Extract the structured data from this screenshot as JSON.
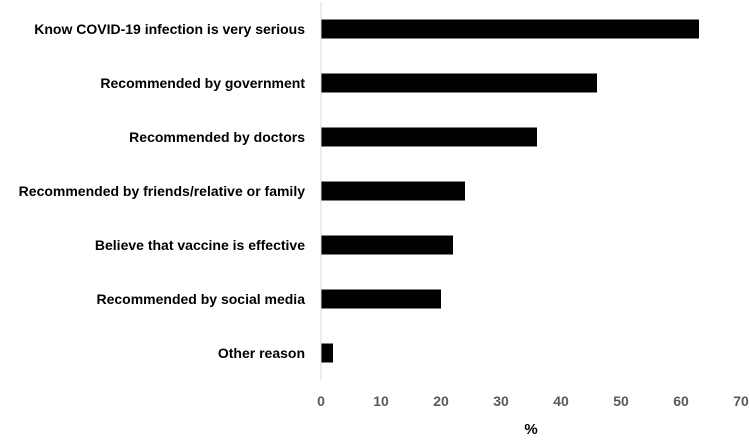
{
  "chart_data": {
    "type": "bar",
    "orientation": "horizontal",
    "categories": [
      "Know COVID-19 infection is very serious",
      "Recommended by government",
      "Recommended by doctors",
      "Recommended by friends/relative or family",
      "Believe that vaccine is effective",
      "Recommended by social media",
      "Other reason"
    ],
    "values": [
      63,
      46,
      36,
      24,
      22,
      20,
      2
    ],
    "xlabel": "%",
    "ylabel": "",
    "title": "",
    "xlim": [
      0,
      70
    ],
    "xticks": [
      "0",
      "10",
      "20",
      "30",
      "40",
      "50",
      "60",
      "70"
    ],
    "grid": false,
    "bar_color": "#000000",
    "axis_color": "#d9d9d9"
  }
}
